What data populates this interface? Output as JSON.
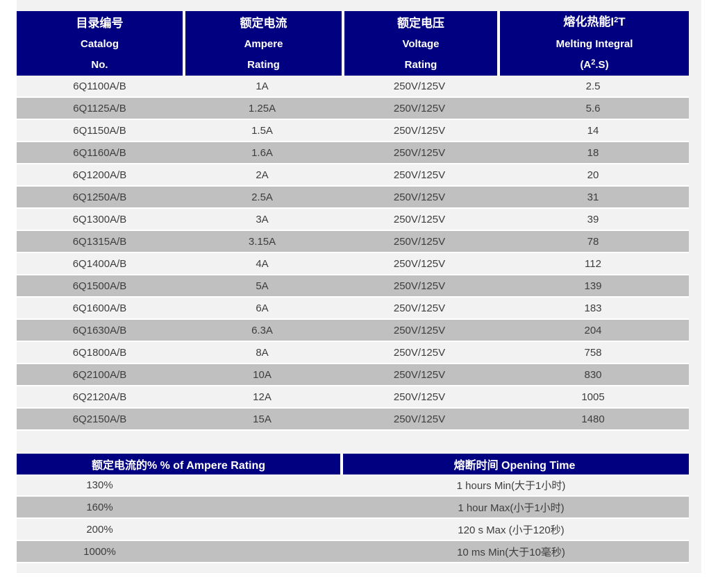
{
  "colors": {
    "header_navy": "#010080",
    "row_light": "#f2f2f2",
    "row_gray": "#c0c0c0",
    "header_text": "#ffffff",
    "body_text": "#3d3d3d",
    "page_background": "#ffffff"
  },
  "table1": {
    "headers": [
      {
        "line1": "目录编号",
        "line2": "Catalog",
        "line3": "No."
      },
      {
        "line1": "额定电流",
        "line2": "Ampere",
        "line3": "Rating"
      },
      {
        "line1": "额定电压",
        "line2": "Voltage",
        "line3": "Rating"
      },
      {
        "line1_pre": "熔化热能I",
        "line1_sup": "2",
        "line1_post": "T",
        "line2": "Melting Integral",
        "line3_pre": "(A",
        "line3_sup": "2",
        "line3_post": ".S)"
      }
    ],
    "rows": [
      [
        "6Q1100A/B",
        "1A",
        "250V/125V",
        "2.5"
      ],
      [
        "6Q1125A/B",
        "1.25A",
        "250V/125V",
        "5.6"
      ],
      [
        "6Q1150A/B",
        "1.5A",
        "250V/125V",
        "14"
      ],
      [
        "6Q1160A/B",
        "1.6A",
        "250V/125V",
        "18"
      ],
      [
        "6Q1200A/B",
        "2A",
        "250V/125V",
        "20"
      ],
      [
        "6Q1250A/B",
        "2.5A",
        "250V/125V",
        "31"
      ],
      [
        "6Q1300A/B",
        "3A",
        "250V/125V",
        "39"
      ],
      [
        "6Q1315A/B",
        "3.15A",
        "250V/125V",
        "78"
      ],
      [
        "6Q1400A/B",
        "4A",
        "250V/125V",
        "112"
      ],
      [
        "6Q1500A/B",
        "5A",
        "250V/125V",
        "139"
      ],
      [
        "6Q1600A/B",
        "6A",
        "250V/125V",
        "183"
      ],
      [
        "6Q1630A/B",
        "6.3A",
        "250V/125V",
        "204"
      ],
      [
        "6Q1800A/B",
        "8A",
        "250V/125V",
        "758"
      ],
      [
        "6Q2100A/B",
        "10A",
        "250V/125V",
        "830"
      ],
      [
        "6Q2120A/B",
        "12A",
        "250V/125V",
        "1005"
      ],
      [
        "6Q2150A/B",
        "15A",
        "250V/125V",
        "1480"
      ]
    ]
  },
  "table2": {
    "headers": [
      "额定电流的% % of Ampere Rating",
      "熔断时间 Opening Time"
    ],
    "rows": [
      [
        "130%",
        "1 hours Min(大于1小时)"
      ],
      [
        "160%",
        "1 hour Max(小于1小时)"
      ],
      [
        "200%",
        "120 s Max (小于120秒)"
      ],
      [
        "1000%",
        "10 ms Min(大于10毫秒)"
      ]
    ]
  }
}
